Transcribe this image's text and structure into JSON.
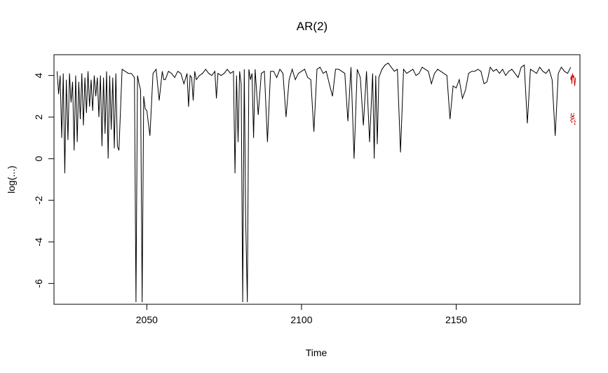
{
  "chart_data": {
    "type": "line",
    "title": "AR(2)",
    "xlabel": "Time",
    "ylabel": "log(...)",
    "xlim": [
      2020,
      2190
    ],
    "ylim": [
      -7,
      5
    ],
    "x_ticks": [
      2050,
      2100,
      2150
    ],
    "x_tick_labels": [
      "2050",
      "2100",
      "2150"
    ],
    "y_ticks": [
      -6,
      -4,
      -2,
      0,
      2,
      4
    ],
    "y_tick_labels": [
      "-6",
      "-4",
      "-2",
      "0",
      "2",
      "4"
    ],
    "grid": false,
    "legend": "none",
    "series": [
      {
        "style": "solid",
        "color": "#000000",
        "x": [
          2021.0,
          2021.5,
          2022.0,
          2022.5,
          2023.0,
          2023.5,
          2024.0,
          2024.5,
          2025.0,
          2025.5,
          2026.0,
          2026.5,
          2027.0,
          2027.5,
          2028.0,
          2028.5,
          2029.0,
          2029.5,
          2030.0,
          2030.5,
          2031.0,
          2031.5,
          2032.0,
          2032.5,
          2033.0,
          2033.5,
          2034.0,
          2034.5,
          2035.0,
          2035.5,
          2036.0,
          2036.5,
          2037.0,
          2037.5,
          2038.0,
          2038.5,
          2039.0,
          2039.5,
          2040.0,
          2040.5,
          2041.0,
          2042.0,
          2043.0,
          2044.0,
          2045.0,
          2046.0,
          2046.5,
          2047.0,
          2047.5,
          2048.0,
          2048.5,
          2049.0,
          2049.5,
          2050.0,
          2051.0,
          2052.0,
          2053.0,
          2054.0,
          2055.0,
          2055.5,
          2056.0,
          2057.0,
          2058.0,
          2059.0,
          2060.0,
          2061.0,
          2062.0,
          2063.0,
          2063.5,
          2064.0,
          2064.5,
          2065.0,
          2065.5,
          2066.0,
          2067.0,
          2068.0,
          2069.0,
          2070.0,
          2071.0,
          2072.0,
          2072.5,
          2073.0,
          2074.0,
          2075.0,
          2076.0,
          2077.0,
          2078.0,
          2078.5,
          2079.0,
          2079.5,
          2080.0,
          2080.5,
          2081.0,
          2081.5,
          2082.0,
          2082.5,
          2083.0,
          2083.5,
          2084.0,
          2084.5,
          2085.0,
          2086.0,
          2087.0,
          2088.0,
          2089.0,
          2090.0,
          2091.0,
          2092.0,
          2093.0,
          2094.0,
          2095.0,
          2096.0,
          2097.0,
          2098.0,
          2099.0,
          2100.0,
          2101.0,
          2102.0,
          2103.0,
          2104.0,
          2105.0,
          2106.0,
          2107.0,
          2108.0,
          2109.0,
          2110.0,
          2111.0,
          2112.0,
          2113.0,
          2114.0,
          2115.0,
          2116.0,
          2117.0,
          2118.0,
          2119.0,
          2120.0,
          2121.0,
          2122.0,
          2123.0,
          2123.5,
          2124.0,
          2124.5,
          2125.0,
          2126.0,
          2127.0,
          2128.0,
          2129.0,
          2130.0,
          2131.0,
          2132.0,
          2133.0,
          2134.0,
          2135.0,
          2136.0,
          2137.0,
          2138.0,
          2139.0,
          2140.0,
          2141.0,
          2142.0,
          2143.0,
          2144.0,
          2145.0,
          2146.0,
          2147.0,
          2148.0,
          2149.0,
          2150.0,
          2151.0,
          2152.0,
          2153.0,
          2154.0,
          2155.0,
          2156.0,
          2157.0,
          2158.0,
          2159.0,
          2160.0,
          2161.0,
          2162.0,
          2163.0,
          2164.0,
          2165.0,
          2166.0,
          2167.0,
          2168.0,
          2169.0,
          2170.0,
          2171.0,
          2172.0,
          2173.0,
          2174.0,
          2175.0,
          2176.0,
          2177.0,
          2178.0,
          2179.0,
          2180.0,
          2181.0,
          2182.0,
          2183.0,
          2184.0,
          2185.0,
          2186.0,
          2187.0
        ],
        "y": [
          4.2,
          3.1,
          4.0,
          1.0,
          4.1,
          -0.7,
          3.8,
          0.9,
          4.1,
          2.7,
          3.7,
          0.4,
          4.0,
          0.8,
          3.7,
          1.9,
          4.1,
          1.6,
          3.9,
          2.2,
          4.2,
          2.5,
          3.8,
          2.3,
          4.0,
          3.0,
          3.9,
          2.0,
          4.0,
          0.6,
          3.9,
          1.2,
          4.2,
          0.0,
          4.0,
          1.4,
          3.9,
          0.5,
          4.1,
          0.6,
          0.4,
          4.3,
          4.2,
          4.1,
          4.1,
          3.9,
          -6.9,
          4.0,
          3.6,
          3.3,
          -6.9,
          3.0,
          2.4,
          2.3,
          1.1,
          4.1,
          4.3,
          2.8,
          4.2,
          3.8,
          3.8,
          4.2,
          4.1,
          3.9,
          4.2,
          4.1,
          3.6,
          4.1,
          2.5,
          4.0,
          3.9,
          2.8,
          4.2,
          3.8,
          4.0,
          4.1,
          4.3,
          4.1,
          4.0,
          4.2,
          2.9,
          4.1,
          4.0,
          4.1,
          4.3,
          4.1,
          4.2,
          -0.7,
          4.0,
          0.8,
          4.2,
          3.6,
          -6.9,
          4.3,
          -3.2,
          -6.9,
          4.3,
          3.8,
          4.1,
          1.0,
          4.3,
          2.1,
          4.1,
          4.2,
          0.8,
          4.2,
          4.2,
          3.9,
          4.3,
          4.1,
          2.0,
          3.8,
          4.3,
          3.8,
          4.1,
          4.2,
          4.3,
          3.9,
          3.8,
          1.3,
          4.3,
          4.4,
          4.1,
          4.2,
          3.6,
          3.0,
          4.3,
          4.3,
          4.2,
          4.1,
          1.8,
          4.4,
          0.0,
          4.3,
          3.9,
          1.6,
          4.2,
          0.8,
          4.1,
          0.0,
          4.0,
          0.7,
          3.9,
          4.3,
          4.5,
          4.6,
          4.4,
          4.2,
          4.3,
          0.3,
          4.3,
          4.1,
          4.2,
          4.3,
          4.0,
          4.1,
          4.4,
          4.3,
          4.2,
          3.6,
          4.1,
          4.3,
          4.2,
          4.1,
          4.0,
          1.9,
          3.5,
          3.4,
          3.8,
          2.9,
          3.3,
          4.1,
          4.2,
          4.2,
          4.3,
          4.2,
          3.6,
          3.7,
          4.4,
          4.2,
          4.3,
          4.1,
          4.3,
          4.0,
          4.2,
          4.3,
          4.1,
          3.9,
          4.4,
          4.5,
          1.7,
          4.3,
          4.2,
          4.1,
          4.4,
          4.2,
          4.1,
          4.3,
          3.8,
          1.1,
          4.1,
          4.4,
          4.2,
          4.1,
          4.4
        ]
      },
      {
        "style": "dotted",
        "color": "#cc0000",
        "x": [
          2187.0,
          2187.2,
          2187.4,
          2187.6,
          2187.8,
          2188.0,
          2188.3,
          2188.6
        ],
        "y": [
          1.8,
          2.2,
          1.7,
          2.1,
          1.9,
          2.2,
          1.6,
          1.9
        ]
      },
      {
        "style": "solid",
        "color": "#cc0000",
        "x": [
          2187.0,
          2187.2,
          2187.4,
          2187.6,
          2187.8,
          2188.0,
          2188.3,
          2188.6
        ],
        "y": [
          3.8,
          4.0,
          3.6,
          4.1,
          3.9,
          4.0,
          3.5,
          3.9
        ]
      }
    ]
  }
}
